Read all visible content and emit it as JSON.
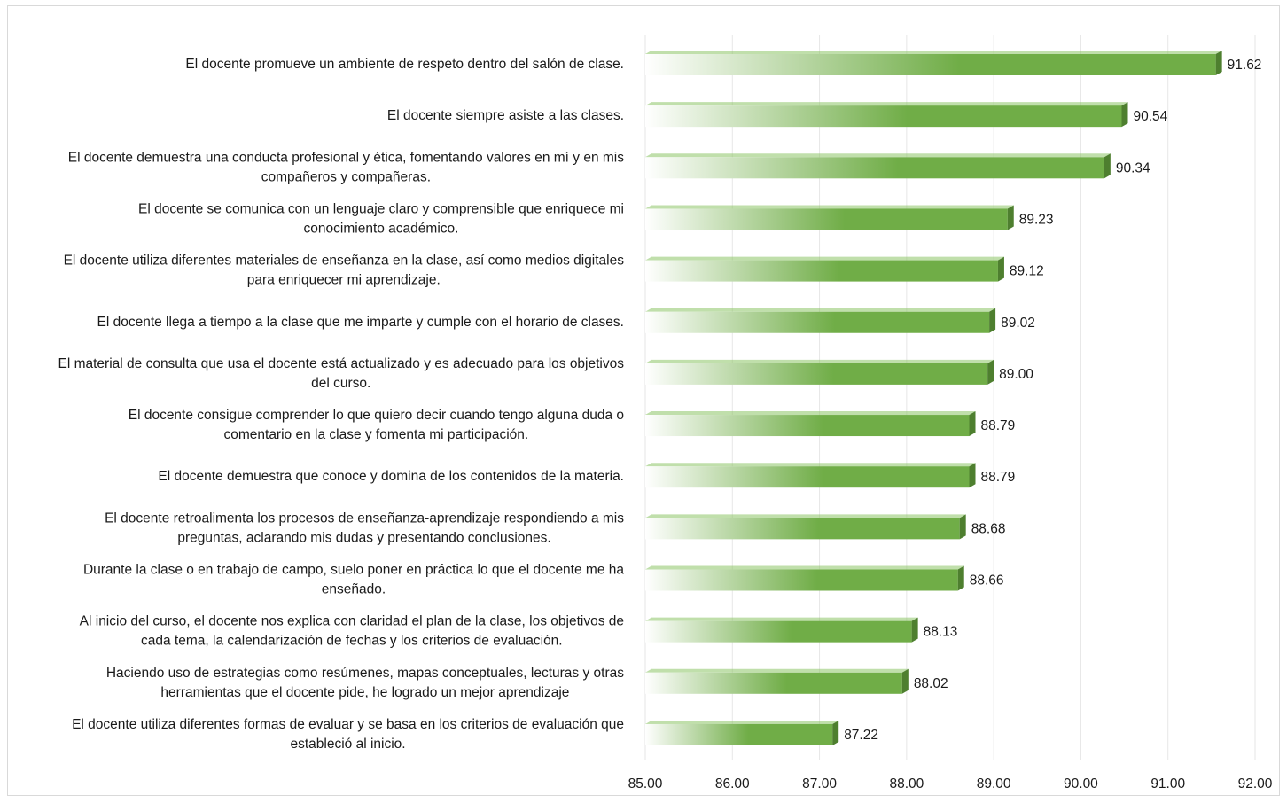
{
  "chart_data": {
    "type": "bar",
    "orientation": "horizontal",
    "categories": [
      "El docente promueve un ambiente de respeto dentro del salón de clase.",
      "El docente siempre asiste a las clases.",
      "El docente demuestra una conducta profesional y ética, fomentando valores en mí y en mis compañeros y compañeras.",
      "El docente se comunica con un lenguaje claro y comprensible que enriquece mi conocimiento académico.",
      "El docente utiliza diferentes materiales de enseñanza en la clase, así como medios digitales para enriquecer mi aprendizaje.",
      "El docente llega a tiempo a la clase que me imparte y cumple con el horario de clases.",
      "El material de consulta que usa el docente está actualizado y es adecuado para los objetivos del curso.",
      "El docente consigue comprender lo que quiero decir cuando tengo alguna duda o comentario en la clase y fomenta mi participación.",
      "El docente demuestra que conoce y domina de los contenidos de la materia.",
      "El docente retroalimenta los procesos de enseñanza-aprendizaje respondiendo a mis preguntas, aclarando mis dudas y presentando conclusiones.",
      "Durante la clase o en trabajo de campo, suelo poner en práctica lo que el docente me ha enseñado.",
      "Al inicio del curso, el docente nos explica con claridad el plan de la clase, los objetivos de cada tema, la calendarización de fechas y los criterios de evaluación.",
      "Haciendo uso de estrategias como resúmenes, mapas conceptuales, lecturas y otras herramientas que el docente pide, he logrado un mejor aprendizaje",
      "El docente utiliza diferentes formas de evaluar y se basa en los criterios de evaluación que estableció al inicio."
    ],
    "category_lines": [
      [
        "El docente promueve un ambiente de respeto dentro del salón de clase."
      ],
      [
        "El docente siempre asiste a las clases."
      ],
      [
        "El docente demuestra una conducta profesional y ética, fomentando valores en mí y en mis",
        "compañeros y compañeras."
      ],
      [
        "El docente se comunica con un lenguaje claro y comprensible que enriquece mi",
        "conocimiento académico."
      ],
      [
        "El docente utiliza diferentes materiales de enseñanza en la clase, así como medios digitales",
        "para enriquecer mi aprendizaje."
      ],
      [
        "El docente llega a tiempo a la clase que me imparte y cumple con el horario de clases."
      ],
      [
        "El material de consulta que usa el docente está actualizado y es adecuado para los objetivos",
        "del curso."
      ],
      [
        "El docente consigue comprender lo que quiero decir cuando tengo alguna duda o",
        "comentario en la clase y fomenta mi participación."
      ],
      [
        "El docente demuestra que conoce y domina de los contenidos de la materia."
      ],
      [
        "El docente retroalimenta los procesos de enseñanza-aprendizaje respondiendo a mis",
        "preguntas, aclarando mis dudas y presentando conclusiones."
      ],
      [
        "Durante la clase o en trabajo de campo, suelo poner en práctica lo que el docente me ha",
        "enseñado."
      ],
      [
        "Al inicio del curso, el docente nos explica con claridad el plan de la clase, los objetivos de",
        "cada tema, la calendarización de fechas y los criterios de evaluación."
      ],
      [
        "Haciendo uso de estrategias como resúmenes, mapas conceptuales, lecturas y otras",
        "herramientas que el docente pide, he logrado un mejor aprendizaje"
      ],
      [
        "El docente utiliza diferentes formas de evaluar y se basa en los criterios de evaluación que",
        "estableció al inicio."
      ]
    ],
    "values": [
      91.62,
      90.54,
      90.34,
      89.23,
      89.12,
      89.02,
      89.0,
      88.79,
      88.79,
      88.68,
      88.66,
      88.13,
      88.02,
      87.22
    ],
    "value_labels": [
      "91.62",
      "90.54",
      "90.34",
      "89.23",
      "89.12",
      "89.02",
      "89.00",
      "88.79",
      "88.79",
      "88.68",
      "88.66",
      "88.13",
      "88.02",
      "87.22"
    ],
    "xlim": [
      85,
      92
    ],
    "xticks": [
      "85.00",
      "86.00",
      "87.00",
      "88.00",
      "89.00",
      "90.00",
      "91.00",
      "92.00"
    ],
    "grid": true,
    "legend": "none",
    "title": "",
    "xlabel": "",
    "ylabel": "",
    "colors": {
      "bar_start": "#ffffff",
      "bar_end": "#70ad47",
      "bar_side": "#4e7f2f",
      "bar_top": "#8cc466",
      "grid": "#e6e6e6",
      "text": "#1a1a1a"
    }
  }
}
